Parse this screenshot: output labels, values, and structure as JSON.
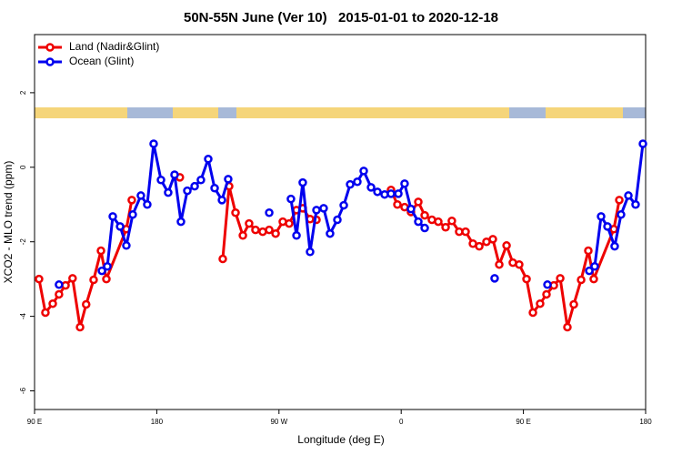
{
  "chart_data": {
    "type": "line",
    "title": "50N-55N June (Ver 10)   2015-01-01 to 2020-12-18",
    "x_label": "Longitude (deg E)",
    "y_label": "XCO2 - MLO trend (ppm)",
    "xlim": [
      90,
      540
    ],
    "ylim": [
      -6.5,
      3.56
    ],
    "xticks": [
      {
        "value": 90,
        "label": "90 E"
      },
      {
        "value": 180,
        "label": "180"
      },
      {
        "value": 270,
        "label": "90 W"
      },
      {
        "value": 360,
        "label": "0"
      },
      {
        "value": 450,
        "label": "90 E"
      },
      {
        "value": 540,
        "label": "180"
      }
    ],
    "yticks": [
      -6,
      -4,
      -2,
      0,
      2
    ],
    "legend": "top-left",
    "series": [
      {
        "name": "Land (Nadir&Glint)",
        "color": "#ee0000",
        "x": [
          93.3,
          98,
          103.4,
          108,
          112.8,
          118,
          123.5,
          128,
          133.5,
          138.9,
          142.9,
          157.6,
          161.6,
          null,
          197,
          null,
          228.6,
          233.3,
          238,
          243.4,
          248,
          252.7,
          258,
          262.8,
          267.5,
          272.8,
          277.5,
          282.9,
          287.5,
          292.9,
          297.6,
          null,
          352.5,
          357.2,
          362.5,
          367.2,
          372.6,
          377.3,
          382.6,
          387.3,
          392.7,
          397.3,
          402.7,
          407.4,
          412.8,
          417.5,
          422.8,
          427.5,
          432.2,
          437.6,
          442.2,
          446.9,
          452.3,
          457,
          462.3,
          467,
          472.4,
          477.1,
          482.4,
          487.1,
          492.5,
          497.8,
          501.8,
          516.6,
          520.6
        ],
        "values": [
          -3.0,
          -3.9,
          -3.66,
          -3.41,
          -3.17,
          -2.98,
          -4.29,
          -3.68,
          -3.02,
          -2.24,
          -3.0,
          -1.66,
          -0.88,
          null,
          -0.27,
          null,
          -2.46,
          -0.51,
          -1.22,
          -1.83,
          -1.51,
          -1.68,
          -1.73,
          -1.68,
          -1.78,
          -1.46,
          -1.51,
          -1.15,
          -1.1,
          -1.39,
          -1.41,
          null,
          -0.61,
          -1.0,
          -1.07,
          -1.2,
          -0.93,
          -1.29,
          -1.41,
          -1.46,
          -1.61,
          -1.44,
          -1.73,
          -1.73,
          -2.05,
          -2.12,
          -2.0,
          -1.93,
          -2.61,
          -2.1,
          -2.56,
          -2.61,
          -3.0,
          -3.9,
          -3.66,
          -3.41,
          -3.17,
          -2.98,
          -4.29,
          -3.68,
          -3.02,
          -2.24,
          -3.0,
          -1.66,
          -0.88
        ]
      },
      {
        "name": "Ocean (Glint)",
        "color": "#0000ee",
        "x": [
          108,
          null,
          139.6,
          143.6,
          147.6,
          153,
          157.6,
          162.3,
          168.3,
          173,
          177.7,
          183.1,
          188.4,
          193.1,
          197.8,
          202.5,
          207.9,
          212.5,
          217.9,
          222.6,
          228,
          232.6,
          null,
          262.8,
          null,
          278.8,
          282.9,
          287.5,
          292.9,
          297.6,
          302.9,
          307.6,
          313,
          317.7,
          322.4,
          327.7,
          332.4,
          337.8,
          342.5,
          347.8,
          352.5,
          357.9,
          362.5,
          367.2,
          372.6,
          377.3,
          null,
          428.8,
          null,
          467.7,
          null,
          498.5,
          502.5,
          507.2,
          511.9,
          517.2,
          521.9,
          527.3,
          532.6,
          538
        ],
        "values": [
          -3.15,
          null,
          -2.78,
          -2.66,
          -1.32,
          -1.59,
          -2.1,
          -1.27,
          -0.76,
          -1.0,
          0.63,
          -0.34,
          -0.68,
          -0.2,
          -1.46,
          -0.63,
          -0.51,
          -0.34,
          0.22,
          -0.56,
          -0.88,
          -0.32,
          null,
          -1.22,
          null,
          -0.85,
          -1.83,
          -0.41,
          -2.27,
          -1.15,
          -1.1,
          -1.78,
          -1.41,
          -1.02,
          -0.46,
          -0.39,
          -0.1,
          -0.54,
          -0.66,
          -0.73,
          -0.71,
          -0.71,
          -0.44,
          -1.12,
          -1.46,
          -1.63,
          null,
          -2.98,
          null,
          -3.15,
          null,
          -2.78,
          -2.66,
          -1.32,
          -1.59,
          -2.12,
          -1.27,
          -0.76,
          -1.0,
          0.63
        ]
      }
    ]
  }
}
